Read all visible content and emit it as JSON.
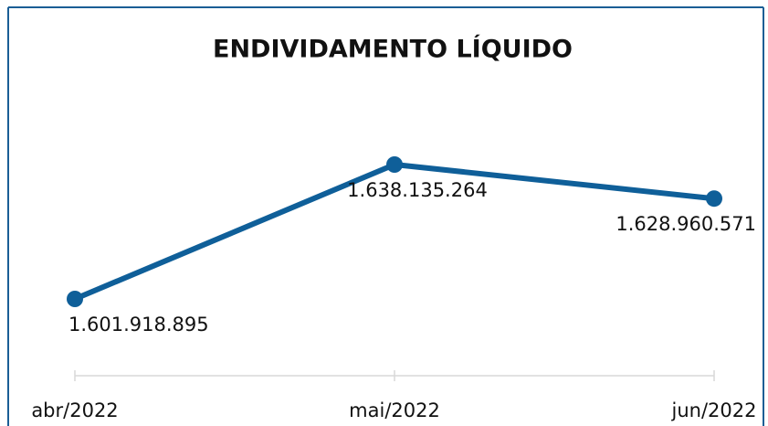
{
  "chart_data": {
    "type": "line",
    "title": "ENDIVIDAMENTO LÍQUIDO",
    "categories": [
      "abr/2022",
      "mai/2022",
      "jun/2022"
    ],
    "series": [
      {
        "name": null,
        "color": "#0f5f99",
        "values": [
          1601918895,
          1638135264,
          1628960571
        ],
        "value_labels": [
          "1.601.918.895",
          "1.638.135.264",
          "1.628.960.571"
        ]
      }
    ]
  }
}
